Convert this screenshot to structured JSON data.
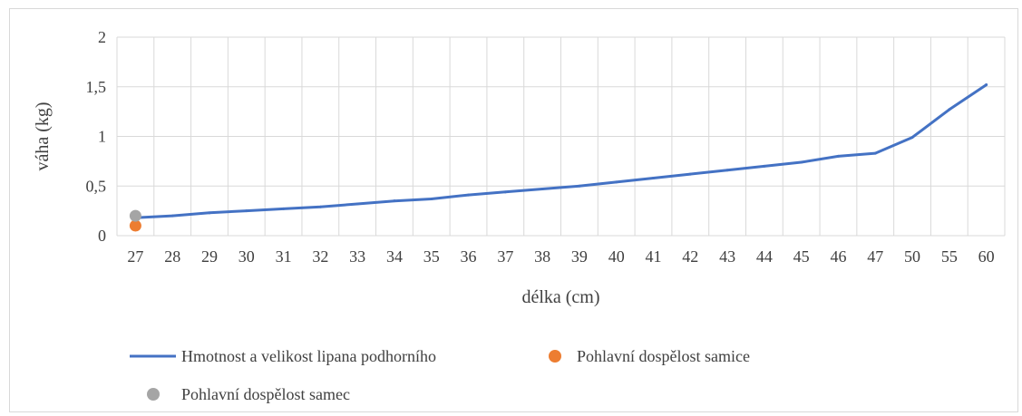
{
  "chart_data": {
    "type": "line",
    "xlabel": "délka (cm)",
    "ylabel": "váha (kg)",
    "categories": [
      "27",
      "28",
      "29",
      "30",
      "31",
      "32",
      "33",
      "34",
      "35",
      "36",
      "37",
      "38",
      "39",
      "40",
      "41",
      "42",
      "43",
      "44",
      "45",
      "46",
      "47",
      "50",
      "55",
      "60"
    ],
    "yticks": [
      "0",
      "0,5",
      "1",
      "1,5",
      "2"
    ],
    "ylim": [
      0,
      2
    ],
    "grid": true,
    "legend_position": "bottom",
    "series": [
      {
        "name": "Hmotnost a velikost lipana podhorního",
        "kind": "line",
        "color": "#4472c4",
        "values": [
          0.18,
          0.2,
          0.23,
          0.25,
          0.27,
          0.29,
          0.32,
          0.35,
          0.37,
          0.41,
          0.44,
          0.47,
          0.5,
          0.54,
          0.58,
          0.62,
          0.66,
          0.7,
          0.74,
          0.8,
          0.83,
          0.99,
          1.27,
          1.52
        ]
      },
      {
        "name": "Pohlavní dospělost samice",
        "kind": "point",
        "color": "#ed7d31",
        "points": [
          {
            "x": "27",
            "y": 0.1
          }
        ]
      },
      {
        "name": "Pohlavní dospělost samec",
        "kind": "point",
        "color": "#a5a5a5",
        "points": [
          {
            "x": "27",
            "y": 0.2
          }
        ]
      }
    ]
  }
}
